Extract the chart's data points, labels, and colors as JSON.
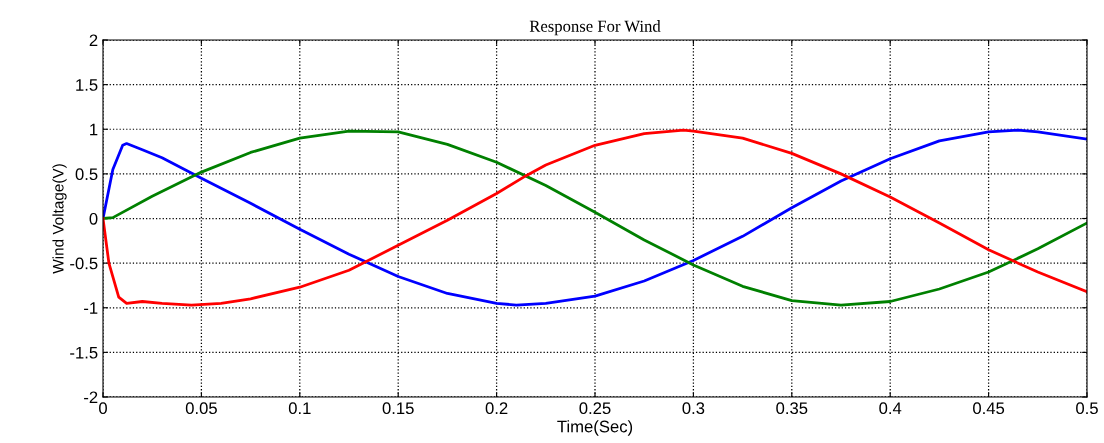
{
  "chart_data": {
    "type": "line",
    "title": "Response For Wind",
    "xlabel": "Time(Sec)",
    "ylabel": "Wind Voltage(V)",
    "xlim": [
      0,
      0.5
    ],
    "ylim": [
      -2,
      2
    ],
    "xticks": [
      0,
      0.05,
      0.1,
      0.15,
      0.2,
      0.25,
      0.3,
      0.35,
      0.4,
      0.45,
      0.5
    ],
    "yticks": [
      -2,
      -1.5,
      -1,
      -0.5,
      0,
      0.5,
      1,
      1.5,
      2
    ],
    "grid": true,
    "line_style": "solid",
    "marker": "none",
    "series": [
      {
        "color": "#0000ff",
        "x": [
          0,
          0.005,
          0.01,
          0.012,
          0.02,
          0.03,
          0.05,
          0.075,
          0.1,
          0.125,
          0.15,
          0.175,
          0.2,
          0.21,
          0.225,
          0.25,
          0.275,
          0.3,
          0.325,
          0.35,
          0.375,
          0.4,
          0.425,
          0.45,
          0.465,
          0.475,
          0.5
        ],
        "values": [
          0,
          0.55,
          0.82,
          0.84,
          0.77,
          0.68,
          0.45,
          0.17,
          -0.12,
          -0.4,
          -0.65,
          -0.84,
          -0.95,
          -0.97,
          -0.95,
          -0.87,
          -0.7,
          -0.47,
          -0.2,
          0.12,
          0.42,
          0.67,
          0.87,
          0.97,
          0.99,
          0.97,
          0.89
        ]
      },
      {
        "color": "#008000",
        "x": [
          0,
          0.005,
          0.025,
          0.05,
          0.075,
          0.1,
          0.125,
          0.15,
          0.175,
          0.2,
          0.225,
          0.25,
          0.275,
          0.3,
          0.325,
          0.35,
          0.375,
          0.4,
          0.425,
          0.45,
          0.475,
          0.5
        ],
        "values": [
          0,
          0.01,
          0.25,
          0.52,
          0.74,
          0.9,
          0.98,
          0.97,
          0.83,
          0.63,
          0.37,
          0.07,
          -0.24,
          -0.52,
          -0.76,
          -0.92,
          -0.97,
          -0.93,
          -0.79,
          -0.6,
          -0.34,
          -0.05
        ]
      },
      {
        "color": "#ff0000",
        "x": [
          0,
          0.003,
          0.008,
          0.012,
          0.02,
          0.03,
          0.045,
          0.06,
          0.075,
          0.1,
          0.125,
          0.15,
          0.175,
          0.2,
          0.215,
          0.225,
          0.25,
          0.275,
          0.295,
          0.3,
          0.325,
          0.35,
          0.375,
          0.4,
          0.425,
          0.45,
          0.475,
          0.5
        ],
        "values": [
          0,
          -0.5,
          -0.88,
          -0.95,
          -0.93,
          -0.95,
          -0.97,
          -0.95,
          -0.9,
          -0.77,
          -0.58,
          -0.3,
          -0.02,
          0.28,
          0.48,
          0.6,
          0.82,
          0.95,
          0.99,
          0.98,
          0.9,
          0.73,
          0.5,
          0.24,
          -0.05,
          -0.35,
          -0.6,
          -0.82
        ]
      }
    ]
  }
}
